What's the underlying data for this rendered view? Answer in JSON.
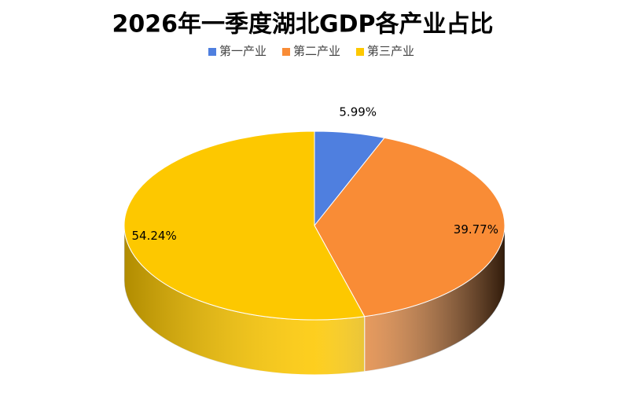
{
  "chart_data": {
    "type": "pie",
    "title": "2026年一季度湖北GDP各产业占比",
    "categories": [
      "第一产业",
      "第二产业",
      "第三产业"
    ],
    "values": [
      5.99,
      39.77,
      54.24
    ],
    "value_labels": [
      "5.99%",
      "39.77%",
      "54.24%"
    ],
    "colors": [
      "#4f7fdf",
      "#f98c36",
      "#fdc800"
    ],
    "legend": "top",
    "style": "3d"
  }
}
